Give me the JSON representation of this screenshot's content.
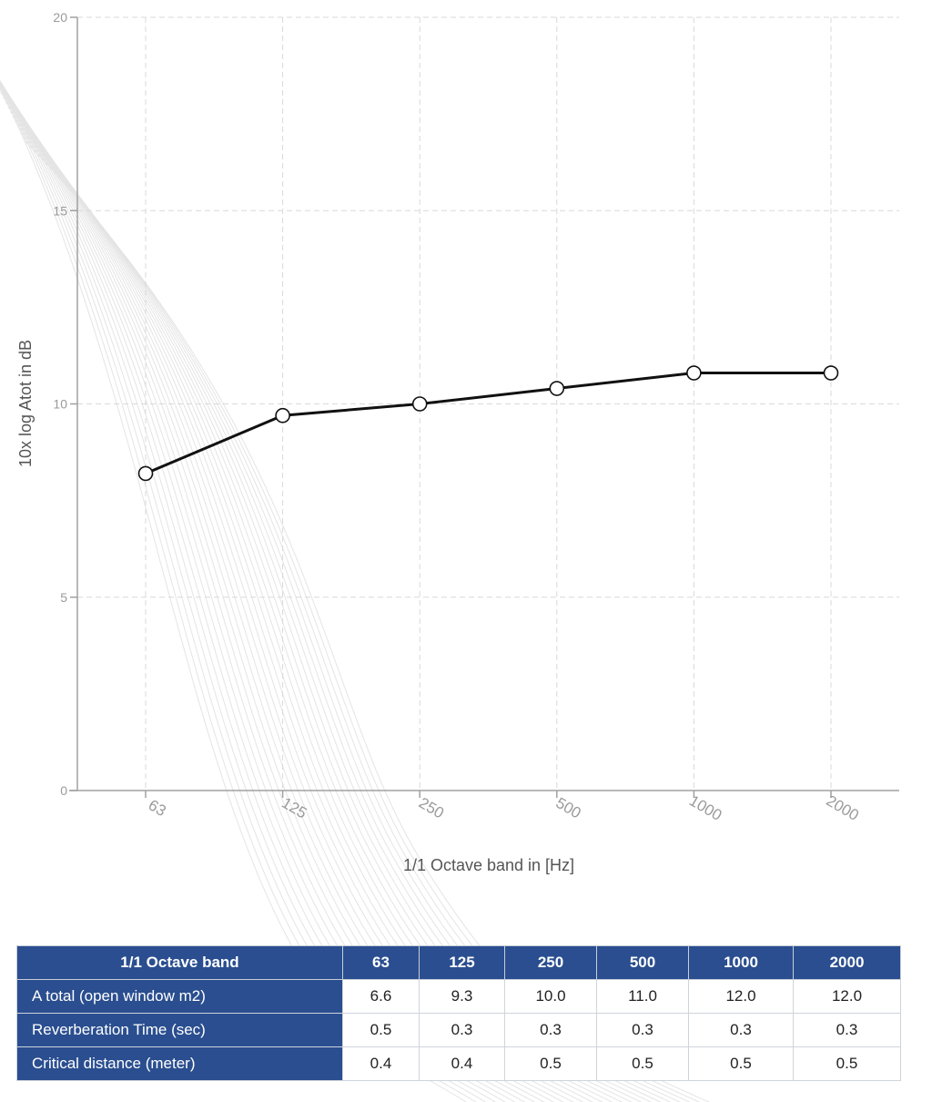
{
  "colors": {
    "line": "#111111",
    "header_bg": "#2a4e8f",
    "grid": "#d9d9d9",
    "axis": "#a0a0a0"
  },
  "chart_data": {
    "type": "line",
    "xlabel": "1/1 Octave band in [Hz]",
    "ylabel": "10x log Atot in dB",
    "categories": [
      "63",
      "125",
      "250",
      "500",
      "1000",
      "2000"
    ],
    "series": [
      {
        "values": [
          8.2,
          9.7,
          10.0,
          10.4,
          10.8,
          10.8
        ]
      }
    ],
    "ylim": [
      0,
      20
    ],
    "yticks": [
      "0",
      "5",
      "10",
      "15",
      "20"
    ],
    "grid": true,
    "legend": "none"
  },
  "table": {
    "header": [
      "1/1 Octave band",
      "63",
      "125",
      "250",
      "500",
      "1000",
      "2000"
    ],
    "rows": [
      {
        "label": "A total (open window m2)",
        "values": [
          "6.6",
          "9.3",
          "10.0",
          "11.0",
          "12.0",
          "12.0"
        ]
      },
      {
        "label": "Reverberation Time (sec)",
        "values": [
          "0.5",
          "0.3",
          "0.3",
          "0.3",
          "0.3",
          "0.3"
        ]
      },
      {
        "label": "Critical distance (meter)",
        "values": [
          "0.4",
          "0.4",
          "0.5",
          "0.5",
          "0.5",
          "0.5"
        ]
      }
    ]
  }
}
